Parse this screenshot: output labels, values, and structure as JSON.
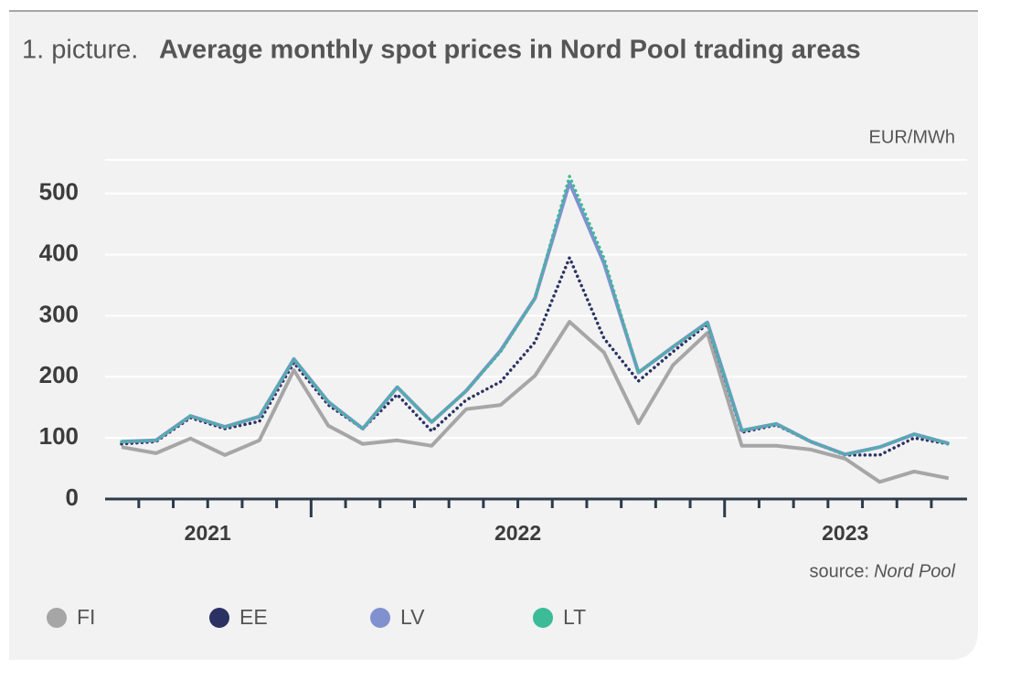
{
  "chart_data": {
    "type": "line",
    "title_prefix": "1. picture.",
    "title": "Average monthly spot prices in Nord Pool trading areas",
    "unit": "EUR/MWh",
    "source_prefix": "source:",
    "source": "Nord Pool",
    "categories": [
      "2021",
      null,
      null,
      null,
      null,
      null,
      "2022",
      null,
      null,
      null,
      null,
      null,
      null,
      null,
      null,
      null,
      null,
      null,
      "2023",
      null,
      null,
      null,
      null,
      null,
      null
    ],
    "ylim": [
      0,
      555
    ],
    "yticks": [
      0,
      100,
      200,
      300,
      400,
      500
    ],
    "grid": true,
    "legend": "bottom",
    "series": [
      {
        "name": "FI",
        "color": "#a6a6a6",
        "style": "solid",
        "values": [
          85,
          75,
          99,
          72,
          96,
          211,
          120,
          90,
          96,
          87,
          147,
          154,
          202,
          290,
          240,
          124,
          219,
          272,
          87,
          87,
          81,
          66,
          28,
          45,
          34
        ]
      },
      {
        "name": "EE",
        "color": "#2b3263",
        "style": "dotted",
        "values": [
          90,
          94,
          133,
          115,
          127,
          223,
          154,
          115,
          171,
          111,
          162,
          192,
          257,
          395,
          263,
          193,
          241,
          286,
          109,
          121,
          94,
          72,
          72,
          100,
          90
        ]
      },
      {
        "name": "LV",
        "color": "#8190cf",
        "style": "solid",
        "values": [
          94,
          96,
          136,
          118,
          135,
          229,
          159,
          115,
          183,
          126,
          177,
          243,
          329,
          518,
          386,
          207,
          249,
          289,
          112,
          123,
          94,
          73,
          85,
          106,
          91
        ]
      },
      {
        "name": "LT",
        "color": "#3bbb98",
        "style": "dotted",
        "values": [
          94,
          96,
          136,
          118,
          135,
          229,
          159,
          115,
          183,
          126,
          177,
          241,
          329,
          528,
          394,
          207,
          249,
          289,
          112,
          123,
          94,
          73,
          85,
          106,
          91
        ]
      }
    ]
  }
}
